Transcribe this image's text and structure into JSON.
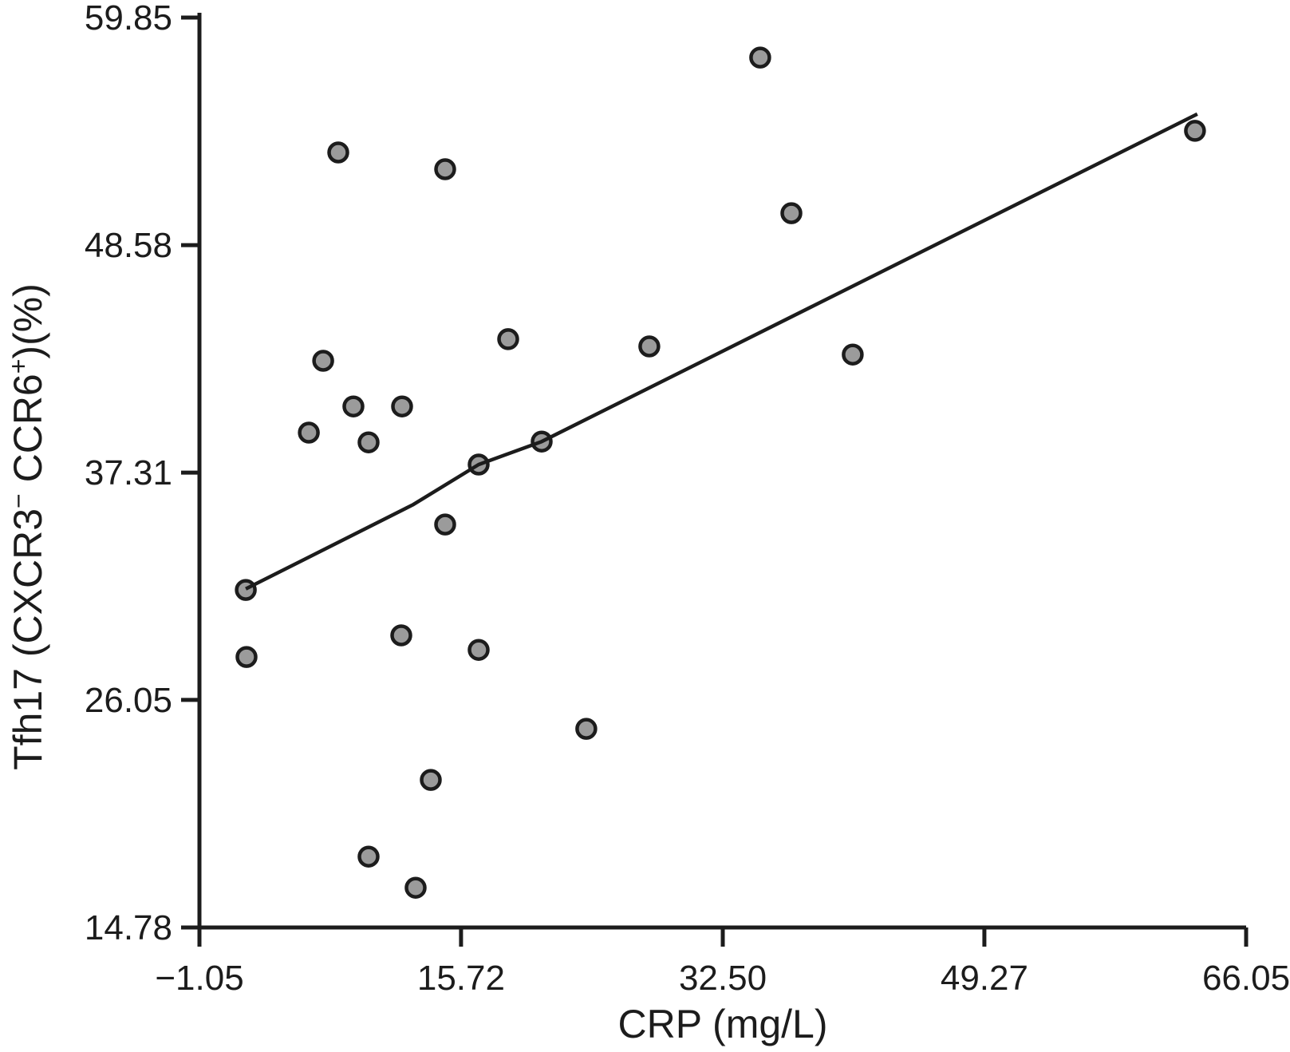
{
  "figure": {
    "background": "#ffffff",
    "axis_color": "#1c1c1c",
    "marker_fill": "#9b9b9b",
    "marker_stroke": "#1c1c1c"
  },
  "chart_data": {
    "type": "scatter",
    "title": "",
    "xlabel": "CRP (mg/L)",
    "ylabel": "Tfh17 (CXCR3⁻ CCR6⁺)(%)",
    "ylabel_parts": {
      "pre": "Tfh17 (CXCR3",
      "sup1": "−",
      "mid": " CCR6",
      "sup2": "+",
      "post": ")(%)"
    },
    "x_ticks": {
      "labels": [
        "−1.05",
        "15.72",
        "32.50",
        "49.27",
        "66.05"
      ],
      "values": [
        -1.05,
        15.72,
        32.5,
        49.27,
        66.05
      ]
    },
    "y_ticks": {
      "labels": [
        "59.85",
        "48.58",
        "37.31",
        "26.05",
        "14.78"
      ],
      "values": [
        59.85,
        48.58,
        37.31,
        26.05,
        14.78
      ]
    },
    "xlim": [
      -1.05,
      66.05
    ],
    "ylim": [
      14.78,
      59.85
    ],
    "grid": false,
    "legend": null,
    "points": [
      [
        34.9,
        57.87
      ],
      [
        62.77,
        54.24
      ],
      [
        7.85,
        53.17
      ],
      [
        14.7,
        52.34
      ],
      [
        36.9,
        50.16
      ],
      [
        18.74,
        43.92
      ],
      [
        27.79,
        43.56
      ],
      [
        40.83,
        43.16
      ],
      [
        6.88,
        42.85
      ],
      [
        8.82,
        40.59
      ],
      [
        11.94,
        40.59
      ],
      [
        5.96,
        39.29
      ],
      [
        9.79,
        38.81
      ],
      [
        20.89,
        38.85
      ],
      [
        16.85,
        37.71
      ],
      [
        14.7,
        34.74
      ],
      [
        1.92,
        31.5
      ],
      [
        11.89,
        29.25
      ],
      [
        16.85,
        28.53
      ],
      [
        1.97,
        28.18
      ],
      [
        23.75,
        24.62
      ],
      [
        13.78,
        22.09
      ],
      [
        9.79,
        18.29
      ],
      [
        12.81,
        16.75
      ]
    ],
    "trend_line": [
      [
        1.92,
        31.55
      ],
      [
        12.66,
        35.73
      ],
      [
        16.85,
        37.71
      ],
      [
        20.89,
        38.85
      ],
      [
        62.92,
        55.07
      ]
    ]
  }
}
